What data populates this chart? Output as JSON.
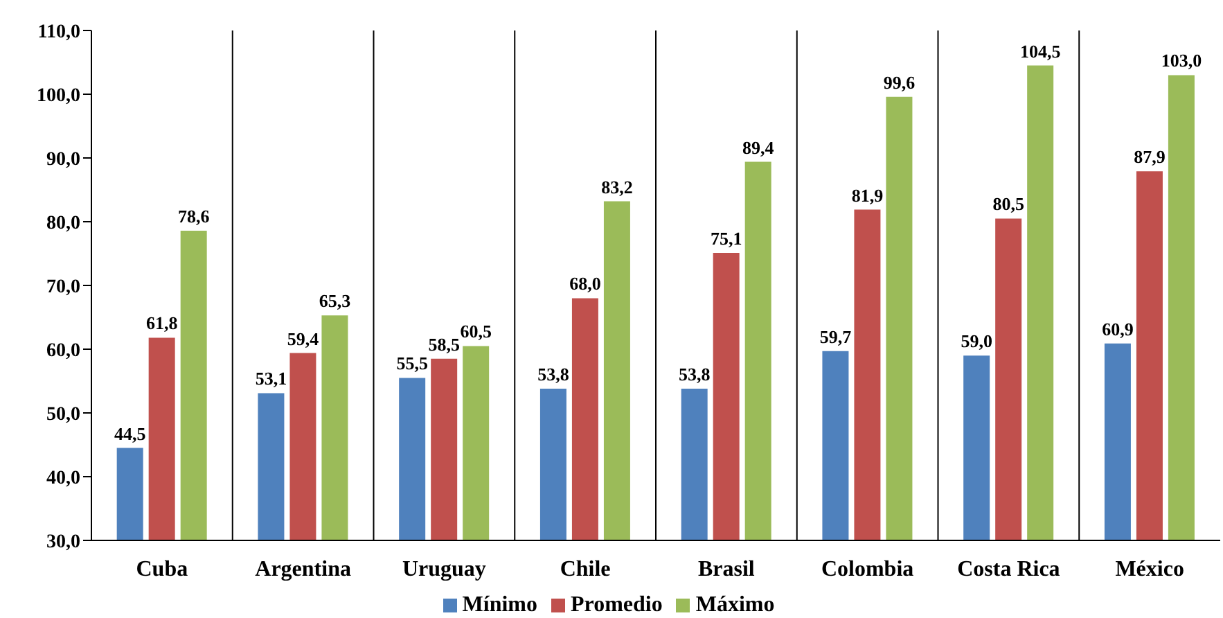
{
  "chart_data": {
    "type": "bar",
    "categories": [
      "Cuba",
      "Argentina",
      "Uruguay",
      "Chile",
      "Brasil",
      "Colombia",
      "Costa Rica",
      "México"
    ],
    "series": [
      {
        "name": "Mínimo",
        "color": "#4f81bd",
        "values": [
          44.5,
          53.1,
          55.5,
          53.8,
          53.8,
          59.7,
          59.0,
          60.9
        ],
        "value_labels": [
          "44,5",
          "53,1",
          "55,5",
          "53,8",
          "53,8",
          "59,7",
          "59,0",
          "60,9"
        ]
      },
      {
        "name": "Promedio",
        "color": "#c0504d",
        "values": [
          61.8,
          59.4,
          58.5,
          68.0,
          75.1,
          81.9,
          80.5,
          87.9
        ],
        "value_labels": [
          "61,8",
          "59,4",
          "58,5",
          "68,0",
          "75,1",
          "81,9",
          "80,5",
          "87,9"
        ]
      },
      {
        "name": "Máximo",
        "color": "#9bbb59",
        "values": [
          78.6,
          65.3,
          60.5,
          83.2,
          89.4,
          99.6,
          104.5,
          103.0
        ],
        "value_labels": [
          "78,6",
          "65,3",
          "60,5",
          "83,2",
          "89,4",
          "99,6",
          "104,5",
          "103,0"
        ]
      }
    ],
    "ylim": [
      30,
      110
    ],
    "yticks": [
      {
        "value": 30,
        "label": "30,0"
      },
      {
        "value": 40,
        "label": "40,0"
      },
      {
        "value": 50,
        "label": "50,0"
      },
      {
        "value": 60,
        "label": "60,0"
      },
      {
        "value": 70,
        "label": "70,0"
      },
      {
        "value": 80,
        "label": "80,0"
      },
      {
        "value": 90,
        "label": "90,0"
      },
      {
        "value": 100,
        "label": "100,0"
      },
      {
        "value": 110,
        "label": "110,0"
      }
    ],
    "grid": "x",
    "legend": "bottom"
  }
}
